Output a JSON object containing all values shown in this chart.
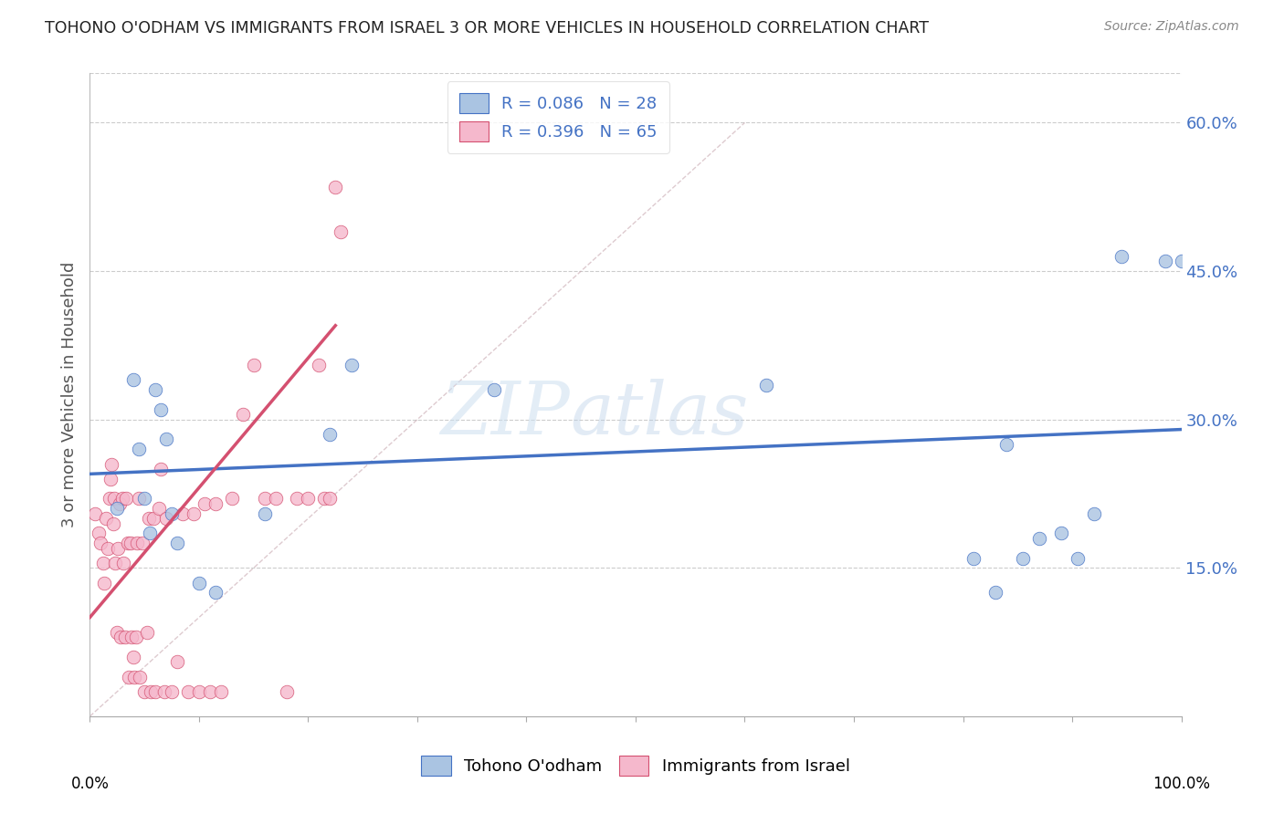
{
  "title": "TOHONO O'ODHAM VS IMMIGRANTS FROM ISRAEL 3 OR MORE VEHICLES IN HOUSEHOLD CORRELATION CHART",
  "source": "Source: ZipAtlas.com",
  "xlabel_bottom": [
    "Tohono O'odham",
    "Immigrants from Israel"
  ],
  "ylabel": "3 or more Vehicles in Household",
  "xlim": [
    0.0,
    1.0
  ],
  "ylim": [
    0.0,
    0.65
  ],
  "ytick_right": [
    0.15,
    0.3,
    0.45,
    0.6
  ],
  "ytick_right_labels": [
    "15.0%",
    "30.0%",
    "45.0%",
    "60.0%"
  ],
  "color_blue": "#aac4e2",
  "color_pink": "#f5b8cc",
  "line_blue": "#4472c4",
  "line_pink": "#d45070",
  "line_diagonal_color": "#c8a8b0",
  "watermark": "ZIPatlas",
  "blue_scatter_x": [
    0.025,
    0.04,
    0.045,
    0.05,
    0.055,
    0.06,
    0.065,
    0.07,
    0.075,
    0.08,
    0.1,
    0.115,
    0.16,
    0.22,
    0.24,
    0.37,
    0.62,
    0.81,
    0.83,
    0.84,
    0.855,
    0.87,
    0.89,
    0.905,
    0.92,
    0.945,
    0.985,
    1.0
  ],
  "blue_scatter_y": [
    0.21,
    0.34,
    0.27,
    0.22,
    0.185,
    0.33,
    0.31,
    0.28,
    0.205,
    0.175,
    0.135,
    0.125,
    0.205,
    0.285,
    0.355,
    0.33,
    0.335,
    0.16,
    0.125,
    0.275,
    0.16,
    0.18,
    0.185,
    0.16,
    0.205,
    0.465,
    0.46,
    0.46
  ],
  "pink_scatter_x": [
    0.005,
    0.008,
    0.01,
    0.012,
    0.013,
    0.015,
    0.016,
    0.018,
    0.019,
    0.02,
    0.021,
    0.022,
    0.023,
    0.025,
    0.026,
    0.027,
    0.028,
    0.03,
    0.031,
    0.032,
    0.033,
    0.035,
    0.036,
    0.037,
    0.038,
    0.04,
    0.041,
    0.042,
    0.043,
    0.045,
    0.046,
    0.048,
    0.05,
    0.052,
    0.054,
    0.056,
    0.058,
    0.06,
    0.063,
    0.065,
    0.068,
    0.07,
    0.075,
    0.08,
    0.085,
    0.09,
    0.095,
    0.1,
    0.105,
    0.11,
    0.115,
    0.12,
    0.13,
    0.14,
    0.15,
    0.16,
    0.17,
    0.18,
    0.19,
    0.2,
    0.21,
    0.215,
    0.22,
    0.225,
    0.23
  ],
  "pink_scatter_y": [
    0.205,
    0.185,
    0.175,
    0.155,
    0.135,
    0.2,
    0.17,
    0.22,
    0.24,
    0.255,
    0.195,
    0.22,
    0.155,
    0.085,
    0.17,
    0.215,
    0.08,
    0.22,
    0.155,
    0.08,
    0.22,
    0.175,
    0.04,
    0.175,
    0.08,
    0.06,
    0.04,
    0.08,
    0.175,
    0.22,
    0.04,
    0.175,
    0.025,
    0.085,
    0.2,
    0.025,
    0.2,
    0.025,
    0.21,
    0.25,
    0.025,
    0.2,
    0.025,
    0.055,
    0.205,
    0.025,
    0.205,
    0.025,
    0.215,
    0.025,
    0.215,
    0.025,
    0.22,
    0.305,
    0.355,
    0.22,
    0.22,
    0.025,
    0.22,
    0.22,
    0.355,
    0.22,
    0.22,
    0.535,
    0.49
  ],
  "blue_trend_x": [
    0.0,
    1.0
  ],
  "blue_trend_y": [
    0.245,
    0.29
  ],
  "pink_trend_x": [
    0.0,
    0.225
  ],
  "pink_trend_y": [
    0.1,
    0.395
  ]
}
